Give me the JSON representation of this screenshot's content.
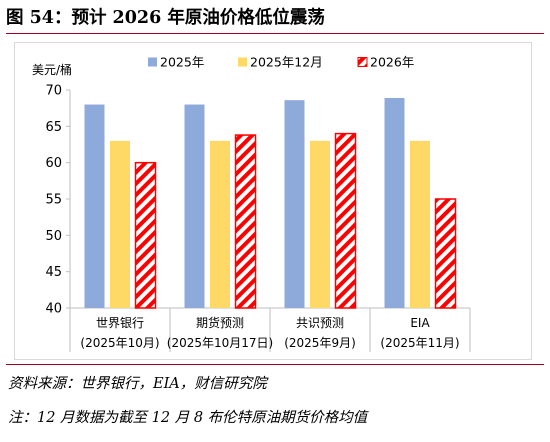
{
  "title": "图 54：预计 2026 年原油价格低位震荡",
  "source": "资料来源：世界银行，EIA，财信研究院",
  "note": "注：12 月数据为截至 12 月 8 布伦特原油期货价格均值",
  "chart_data": {
    "type": "bar",
    "ylabel": "美元/桶",
    "ylim": [
      40,
      70
    ],
    "yticks": [
      40,
      45,
      50,
      55,
      60,
      65,
      70
    ],
    "grid": false,
    "legend_position": "top",
    "categories": [
      {
        "name": "世界银行",
        "sub": "(2025年10月)"
      },
      {
        "name": "期货预测",
        "sub": "(2025年10月17日)"
      },
      {
        "name": "共识预测",
        "sub": "(2025年9月)"
      },
      {
        "name": "EIA",
        "sub": "(2025年11月)"
      }
    ],
    "series": [
      {
        "name": "2025年",
        "color": "#8eaadb",
        "pattern": "solid",
        "values": [
          68.0,
          68.0,
          68.6,
          68.9
        ]
      },
      {
        "name": "2025年12月",
        "color": "#ffd966",
        "pattern": "solid",
        "values": [
          63.0,
          63.0,
          63.0,
          63.0
        ]
      },
      {
        "name": "2026年",
        "color": "#ff0000",
        "pattern": "hatch",
        "values": [
          60.0,
          63.8,
          64.0,
          55.0
        ]
      }
    ]
  }
}
